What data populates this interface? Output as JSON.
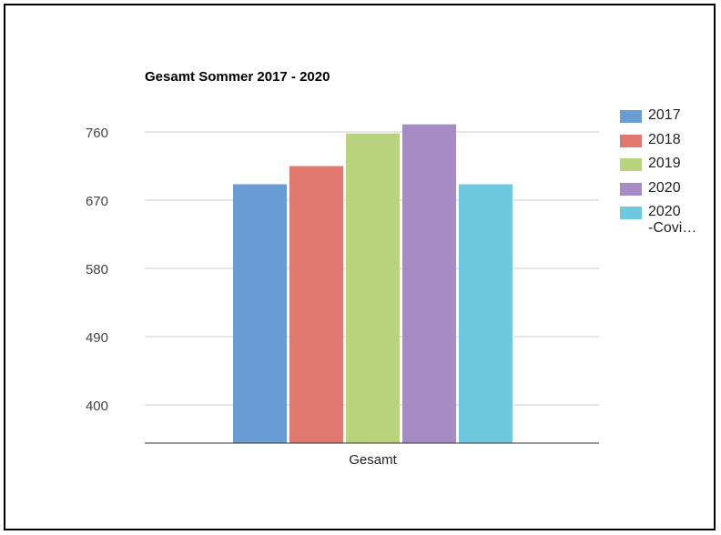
{
  "chart_data": {
    "type": "bar",
    "title": "Gesamt Sommer 2017 - 2020",
    "categories": [
      "Gesamt"
    ],
    "series": [
      {
        "name": "2017",
        "values": [
          691
        ]
      },
      {
        "name": "2018",
        "values": [
          715
        ]
      },
      {
        "name": "2019",
        "values": [
          758
        ]
      },
      {
        "name": "2020",
        "values": [
          770
        ]
      },
      {
        "name": "2020 -Covi…",
        "values": [
          691
        ]
      }
    ],
    "colors": [
      "#6a9cd6",
      "#e07870",
      "#b8d37b",
      "#a78bc4",
      "#6ec8e0"
    ],
    "xlabel": "",
    "ylabel": "",
    "yticks": [
      400,
      490,
      580,
      670,
      760
    ],
    "ylim": [
      349,
      822
    ],
    "grid": true,
    "legend_position": "right"
  }
}
